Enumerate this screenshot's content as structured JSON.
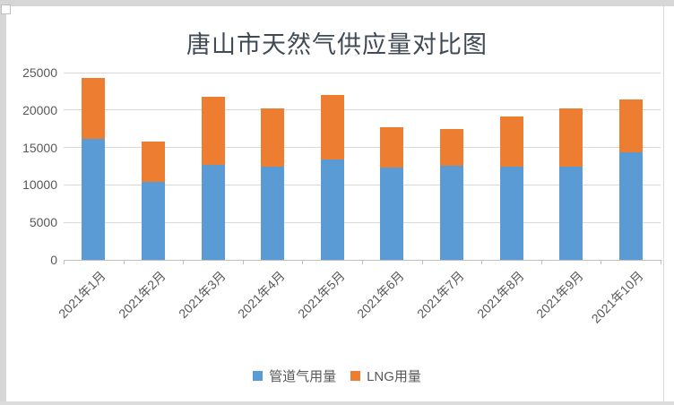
{
  "window": {
    "background": "#ffffff",
    "border_color": "#d6d6d6"
  },
  "chart_data": {
    "type": "bar",
    "stacked": true,
    "title": "唐山市天然气供应量对比图",
    "categories": [
      "2021年1月",
      "2021年2月",
      "2021年3月",
      "2021年4月",
      "2021年5月",
      "2021年6月",
      "2021年7月",
      "2021年8月",
      "2021年9月",
      "2021年10月"
    ],
    "series": [
      {
        "name": "管道气用量",
        "color": "#5B9BD5",
        "values": [
          16200,
          10400,
          12700,
          12400,
          13400,
          12300,
          12600,
          12400,
          12500,
          14300
        ]
      },
      {
        "name": "LNG用量",
        "color": "#ED7D31",
        "values": [
          8100,
          5400,
          9100,
          7800,
          8600,
          5400,
          4900,
          6700,
          7700,
          7100
        ]
      }
    ],
    "totals": [
      24300,
      15800,
      21800,
      20200,
      22000,
      17700,
      17500,
      19100,
      20200,
      21400
    ],
    "xlabel": "",
    "ylabel": "",
    "ylim": [
      0,
      25000
    ],
    "y_ticks": [
      0,
      5000,
      10000,
      15000,
      20000,
      25000
    ],
    "grid": true,
    "legend_position": "bottom",
    "gridline_color": "#d9d9d9",
    "axis_line_color": "#bfbfbf",
    "tick_label_color": "#595959",
    "title_color": "#3f4a56"
  }
}
